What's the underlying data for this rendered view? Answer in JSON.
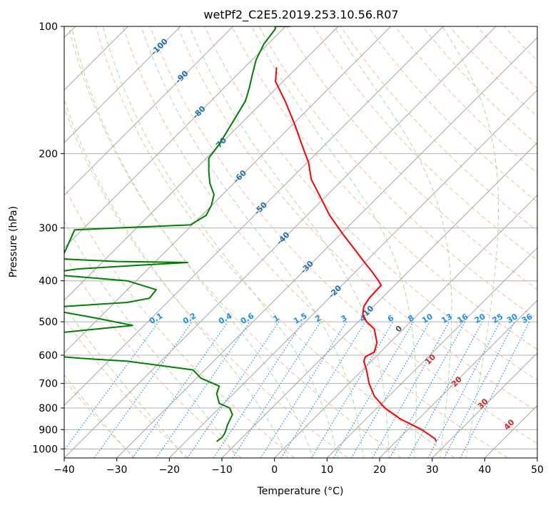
{
  "chart_data": {
    "type": "line",
    "title": "wetPf2_C2E5.2019.253.10.56.R07",
    "xlabel": "Temperature (°C)",
    "ylabel": "Pressure (hPa)",
    "xlim": [
      -40,
      50
    ],
    "ylim": [
      1050,
      100
    ],
    "y_scale": "log",
    "grid": true,
    "x_ticks": [
      -40,
      -30,
      -20,
      -10,
      0,
      10,
      20,
      30,
      40,
      50
    ],
    "x_tick_labels": [
      "−40",
      "−30",
      "−20",
      "−10",
      "0",
      "10",
      "20",
      "30",
      "40",
      "50"
    ],
    "y_ticks": [
      100,
      200,
      300,
      400,
      500,
      600,
      700,
      800,
      900,
      1000
    ],
    "y_tick_labels": [
      "100",
      "200",
      "300",
      "400",
      "500",
      "600",
      "700",
      "800",
      "900",
      "1000"
    ],
    "series": [
      {
        "color": "#ff0000",
        "x": [
          30.8,
          30.5,
          28,
          24,
          21,
          19,
          18,
          17.5,
          17,
          17.3,
          19,
          19.5,
          19,
          17.5,
          16.8,
          17,
          18,
          19.5,
          20.3,
          19.8,
          18.5,
          17,
          15.5,
          13,
          10.5,
          8.5,
          7,
          6.5,
          5.5,
          3.8,
          2,
          0.2,
          0.4
        ],
        "y": [
          960,
          945,
          900,
          850,
          800,
          750,
          700,
          650,
          620,
          605,
          590,
          560,
          520,
          500,
          480,
          460,
          440,
          420,
          410,
          400,
          380,
          360,
          340,
          310,
          280,
          250,
          230,
          210,
          195,
          170,
          150,
          135,
          125
        ]
      },
      {
        "color": "#008000",
        "x": [
          -11,
          -10,
          -9.5,
          -9.2,
          -9,
          -8,
          -8.5,
          -10.5,
          -11,
          -10.5,
          -14,
          -15.5,
          -28,
          -37,
          -40.5,
          -40.3,
          -27,
          -34,
          -42,
          -40,
          -28,
          -23.8,
          -22.5,
          -28,
          -44,
          -37.5,
          -25,
          -16.5,
          -30,
          -40.5,
          -38,
          -16,
          -13,
          -12,
          -11.5,
          -12.3,
          -12.5,
          -12.5,
          -10.5,
          -7.5,
          -5.5,
          -4.8,
          -4.2,
          -3.5,
          -2,
          0,
          0.2,
          0.1,
          1,
          3
        ],
        "y": [
          960,
          940,
          920,
          900,
          880,
          830,
          800,
          780,
          740,
          710,
          680,
          650,
          620,
          610,
          605,
          530,
          510,
          490,
          470,
          460,
          450,
          440,
          420,
          400,
          385,
          375,
          367,
          362,
          360,
          355,
          303,
          295,
          280,
          265,
          250,
          235,
          220,
          205,
          190,
          165,
          150,
          140,
          130,
          120,
          110,
          102,
          101,
          100,
          100,
          100
        ]
      }
    ],
    "dry_adiabats": [
      -30,
      -20,
      -10,
      0,
      10,
      20,
      30,
      40,
      50,
      60,
      70,
      80,
      90,
      100,
      110,
      120,
      130,
      140,
      150,
      160,
      170,
      180
    ],
    "moist_adiabats": [
      -30,
      -20,
      -10,
      0,
      5,
      10,
      15,
      20,
      25,
      30,
      35
    ],
    "isotherm_labels": [
      -100,
      -90,
      -80,
      -70,
      -60,
      -50,
      -40,
      -30,
      -20,
      -10
    ],
    "mixing_ratio_labels": [
      "0.1",
      "0.2",
      "0.4",
      "0.6",
      "1",
      "1.5",
      "2",
      "3",
      "4",
      "6",
      "8",
      "10",
      "13",
      "16",
      "20",
      "25",
      "30",
      "36"
    ],
    "mixing_ratio_values": [
      0.1,
      0.2,
      0.4,
      0.6,
      1,
      1.5,
      2,
      3,
      4,
      6,
      8,
      10,
      13,
      16,
      20,
      25,
      30,
      36
    ],
    "red_labels": [
      "0",
      "10",
      "20",
      "30",
      "40"
    ],
    "colors": {
      "temperature": "#ff0000",
      "dewpoint": "#008000",
      "dry_adiabat": "#fcae91",
      "moist_adiabat": "#a1d99b",
      "mixing_ratio": "#1f8ef1",
      "isotherm": "#999999",
      "isotherm_label": "#1f6fb4",
      "red_label": "#d62728"
    }
  }
}
